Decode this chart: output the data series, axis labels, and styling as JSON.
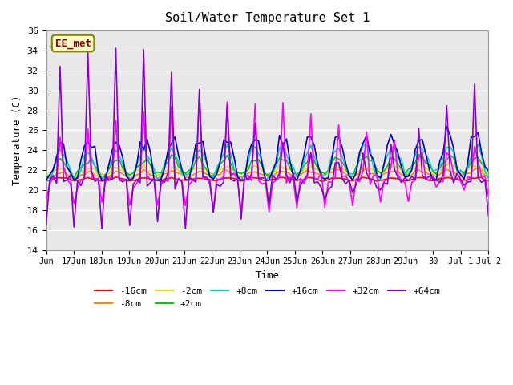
{
  "title": "Soil/Water Temperature Set 1",
  "xlabel": "Time",
  "ylabel": "Temperature (C)",
  "ylim": [
    14,
    36
  ],
  "yticks": [
    14,
    16,
    18,
    20,
    22,
    24,
    26,
    28,
    30,
    32,
    34,
    36
  ],
  "annotation": "EE_met",
  "xtick_labels": [
    "Jun",
    "17Jun",
    "18Jun",
    "19Jun",
    "20Jun",
    "21Jun",
    "22Jun",
    "23Jun",
    "24Jun",
    "25Jun",
    "26Jun",
    "27Jun",
    "28Jun",
    "29Jun",
    "30",
    "Jul 1",
    "Jul 2"
  ],
  "plot_bg_color": "#e8e8e8",
  "grid_color": "#ffffff",
  "lw": 1.2,
  "series_colors": [
    "#ff0000",
    "#ff8800",
    "#dddd00",
    "#00cc00",
    "#00cccc",
    "#0000bb",
    "#ff00ff",
    "#8800cc"
  ],
  "series_names": [
    "-16cm",
    "-8cm",
    "-2cm",
    "+2cm",
    "+8cm",
    "+16cm",
    "+32cm",
    "+64cm"
  ]
}
